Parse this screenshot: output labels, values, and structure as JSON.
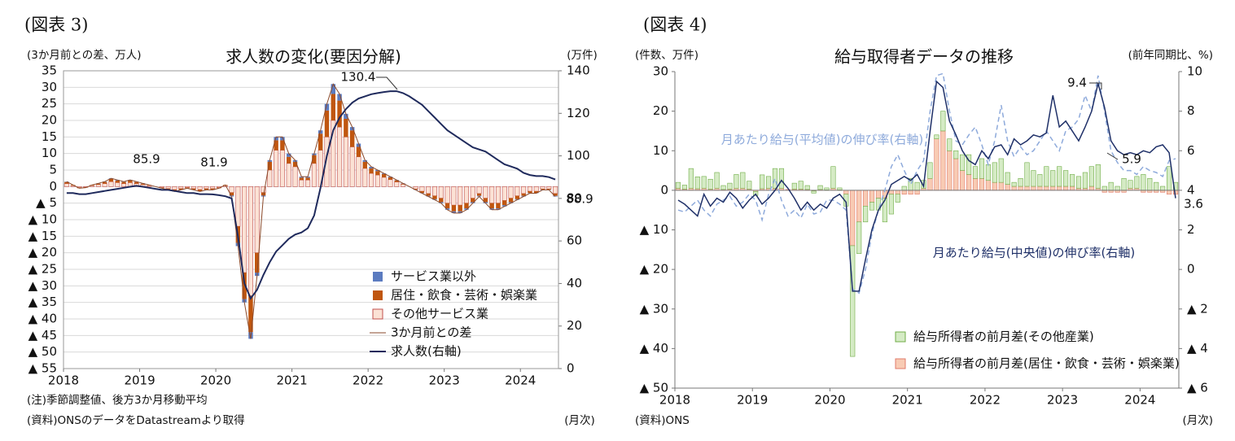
{
  "chart_data": [
    {
      "type": "combo",
      "caption": "(図表 3)",
      "title": "求人数の変化(要因分解)",
      "ylabel": "(3か月前との差、万人)",
      "y2label": "(万件)",
      "x_label": "(月次)",
      "notes": [
        "(注)季節調整値、後方3か月移動平均",
        "(資料)ONSのデータをDatastreamより取得"
      ],
      "annotations": [
        "85.9",
        "81.9",
        "130.4",
        "88.9"
      ],
      "grid": true,
      "frame": true,
      "legend": "lower right",
      "categories": [
        "2018",
        null,
        null,
        null,
        null,
        null,
        null,
        null,
        null,
        null,
        null,
        null,
        "2019",
        null,
        null,
        null,
        null,
        null,
        null,
        null,
        null,
        null,
        null,
        null,
        "2020",
        null,
        null,
        null,
        null,
        null,
        null,
        null,
        null,
        null,
        null,
        null,
        "2021",
        null,
        null,
        null,
        null,
        null,
        null,
        null,
        null,
        null,
        null,
        null,
        "2022",
        null,
        null,
        null,
        null,
        null,
        null,
        null,
        null,
        null,
        null,
        null,
        "2023",
        null,
        null,
        null,
        null,
        null,
        null,
        null,
        null,
        null,
        null,
        null,
        "2024",
        null,
        null,
        null,
        null,
        null
      ],
      "ylim": [
        -55,
        35
      ],
      "yticks": [
        35,
        30,
        25,
        20,
        15,
        10,
        5,
        0,
        {
          "value": -5,
          "label": "▲ 5"
        },
        {
          "value": -10,
          "label": "▲ 10"
        },
        {
          "value": -15,
          "label": "▲ 15"
        },
        {
          "value": -20,
          "label": "▲ 20"
        },
        {
          "value": -25,
          "label": "▲ 25"
        },
        {
          "value": -30,
          "label": "▲ 30"
        },
        {
          "value": -35,
          "label": "▲ 35"
        },
        {
          "value": -40,
          "label": "▲ 40"
        },
        {
          "value": -45,
          "label": "▲ 45"
        },
        {
          "value": -50,
          "label": "▲ 50"
        },
        {
          "value": -55,
          "label": "▲ 55"
        }
      ],
      "y2lim": [
        0,
        140
      ],
      "y2ticks": [
        140,
        120,
        100,
        80,
        60,
        40,
        20,
        0
      ],
      "series": [
        {
          "name": "サービス業以外",
          "kind": "bar",
          "color": "#5b7bc0",
          "values": [
            0.1,
            0,
            0,
            0,
            0,
            0.1,
            0.1,
            0.2,
            0.2,
            0.1,
            0.2,
            0.1,
            0.1,
            0,
            0,
            0,
            -0.1,
            -0.1,
            -0.1,
            0,
            -0.1,
            -0.1,
            -0.1,
            -0.1,
            0,
            0,
            -0.3,
            -1,
            -1,
            -2,
            -1,
            -0.3,
            0.5,
            1,
            1,
            1,
            0.5,
            0.3,
            0.3,
            0.5,
            1,
            2,
            3,
            2,
            1.5,
            1,
            1,
            0.5,
            0.5,
            0.3,
            0.2,
            0.2,
            0.1,
            0.1,
            0,
            -0.1,
            -0.1,
            -0.2,
            -0.2,
            -0.3,
            -0.4,
            -0.5,
            -0.5,
            -0.4,
            -0.3,
            -0.2,
            -0.3,
            -0.4,
            -0.4,
            -0.4,
            -0.3,
            -0.2,
            -0.2,
            -0.1,
            -0.1,
            -0.1,
            -0.1,
            -0.2
          ]
        },
        {
          "name": "居住・飲食・芸術・娯楽業",
          "kind": "bar",
          "color": "#c0560f",
          "values": [
            0.5,
            0.2,
            -0.2,
            -0.1,
            0.2,
            0.3,
            0.5,
            0.8,
            0.6,
            0.5,
            0.6,
            0.5,
            0.3,
            0.2,
            0,
            -0.2,
            -0.3,
            -0.5,
            -0.3,
            -0.2,
            -0.3,
            -0.5,
            -0.3,
            -0.3,
            -0.2,
            0.2,
            -0.9,
            -5,
            -8,
            -11,
            -6,
            -0.9,
            2.5,
            3,
            3,
            2,
            1.5,
            0.7,
            0.7,
            2.5,
            5,
            8,
            8,
            8,
            5.5,
            5,
            3,
            2,
            1.5,
            1.2,
            1,
            0.7,
            0.5,
            0.2,
            0,
            -0.2,
            -0.5,
            -0.7,
            -1,
            -1.2,
            -1.6,
            -1.9,
            -1.9,
            -1.6,
            -1.2,
            -0.7,
            -1.2,
            -1.6,
            -1.6,
            -1.4,
            -1.2,
            -1,
            -0.7,
            -0.5,
            -0.5,
            -0.2,
            -0.2,
            -0.7
          ]
        },
        {
          "name": "その他サービス業",
          "kind": "bar",
          "color": "#fbe2d5",
          "edgecolor": "#c0504d",
          "values": [
            0.9,
            0.3,
            -0.3,
            -0.2,
            0.3,
            0.6,
            0.9,
            1.5,
            1.2,
            0.9,
            1.2,
            0.9,
            0.6,
            0.3,
            0,
            -0.3,
            -0.6,
            -0.9,
            -0.6,
            -0.3,
            -0.6,
            -0.9,
            -0.6,
            -0.6,
            -0.3,
            0.3,
            -1.8,
            -12,
            -26,
            -33,
            -20,
            -1.8,
            5,
            11,
            11,
            7,
            6,
            2,
            2,
            7,
            11,
            15,
            20,
            18,
            15,
            12,
            9,
            5.5,
            4,
            3.5,
            2.8,
            2.1,
            1.4,
            0.7,
            0,
            -0.7,
            -1.4,
            -2.1,
            -2.8,
            -3.5,
            -5,
            -5.6,
            -5.6,
            -5,
            -3.5,
            -2.1,
            -3.5,
            -5,
            -5,
            -4.2,
            -3.5,
            -2.8,
            -2.1,
            -1.4,
            -1.4,
            -0.7,
            -0.7,
            -2.1
          ]
        },
        {
          "name": "3か月前との差",
          "kind": "line",
          "color": "#8b4a2b",
          "width": 1,
          "values": [
            1.5,
            0.5,
            -0.5,
            -0.3,
            0.5,
            1,
            1.5,
            2.5,
            2,
            1.5,
            2,
            1.5,
            1,
            0.5,
            0,
            -0.5,
            -1,
            -1.5,
            -1,
            -0.5,
            -1,
            -1.5,
            -1,
            -1,
            -0.5,
            0.5,
            -3,
            -18,
            -35,
            -46,
            -27,
            -3,
            8,
            15,
            15,
            10,
            8,
            3,
            3,
            10,
            17,
            25,
            31,
            28,
            22,
            18,
            13,
            8,
            6,
            5,
            4,
            3,
            2,
            1,
            0,
            -1,
            -2,
            -3,
            -4,
            -5,
            -7,
            -8,
            -8,
            -7,
            -5,
            -3,
            -5,
            -7,
            -7,
            -6,
            -5,
            -4,
            -3,
            -2,
            -2,
            -1,
            -1,
            -3
          ]
        },
        {
          "name": "求人数(右軸)",
          "kind": "line",
          "axis": "y2",
          "color": "#1f2a5c",
          "width": 2,
          "values": [
            82.5,
            82.5,
            82,
            82,
            82.5,
            83,
            83.5,
            84,
            84.5,
            85,
            85.5,
            85.9,
            85.5,
            85,
            84.5,
            84,
            84,
            83.5,
            83,
            82.5,
            82.5,
            82,
            82,
            81.9,
            81.5,
            81,
            80,
            62,
            40,
            33,
            37,
            44,
            50,
            55,
            58,
            61,
            63,
            64,
            66,
            72,
            85,
            100,
            112,
            118,
            122,
            125,
            127,
            128,
            129,
            129.5,
            130,
            130.4,
            130.4,
            129.5,
            128,
            126,
            124,
            121,
            118,
            115,
            112,
            110,
            108,
            106,
            104,
            103,
            102,
            100,
            98,
            96,
            95,
            94,
            92,
            91,
            90.5,
            90.5,
            90,
            88.9
          ]
        }
      ]
    },
    {
      "type": "combo",
      "caption": "(図表 4)",
      "title": "給与取得者データの推移",
      "ylabel": "(件数、万件)",
      "y2label": "(前年同期比、%)",
      "x_label": "(月次)",
      "notes": [
        "(資料)ONS"
      ],
      "annotations": [
        "9.4",
        "5.9",
        "3.6"
      ],
      "grid": false,
      "frame": false,
      "legend": "lower center",
      "categories": [
        "2018",
        null,
        null,
        null,
        null,
        null,
        null,
        null,
        null,
        null,
        null,
        null,
        "2019",
        null,
        null,
        null,
        null,
        null,
        null,
        null,
        null,
        null,
        null,
        null,
        "2020",
        null,
        null,
        null,
        null,
        null,
        null,
        null,
        null,
        null,
        null,
        null,
        "2021",
        null,
        null,
        null,
        null,
        null,
        null,
        null,
        null,
        null,
        null,
        null,
        "2022",
        null,
        null,
        null,
        null,
        null,
        null,
        null,
        null,
        null,
        null,
        null,
        "2023",
        null,
        null,
        null,
        null,
        null,
        null,
        null,
        null,
        null,
        null,
        null,
        "2024",
        null,
        null,
        null,
        null,
        null
      ],
      "ylim": [
        -50,
        30
      ],
      "yticks": [
        30,
        20,
        10,
        0,
        {
          "value": -10,
          "label": "▲ 10"
        },
        {
          "value": -20,
          "label": "▲ 20"
        },
        {
          "value": -30,
          "label": "▲ 30"
        },
        {
          "value": -40,
          "label": "▲ 40"
        },
        {
          "value": -50,
          "label": "▲ 50"
        }
      ],
      "y2lim": [
        -6,
        10
      ],
      "y2ticks": [
        10,
        8,
        6,
        4,
        2,
        0,
        {
          "value": -2,
          "label": "▲ 2"
        },
        {
          "value": -4,
          "label": "▲ 4"
        },
        {
          "value": -6,
          "label": "▲ 6"
        }
      ],
      "series": [
        {
          "name": "給与所得者の前月差(その他産業)",
          "kind": "bar",
          "color": "#d5ebc5",
          "edgecolor": "#70ad47",
          "values": [
            1.5,
            1,
            5,
            3,
            3,
            2.5,
            4,
            1,
            1.5,
            3.5,
            4,
            2,
            -1,
            3.5,
            3,
            5,
            5,
            0,
            1.5,
            2,
            1,
            -0.5,
            1,
            0.5,
            5.5,
            0.5,
            -3,
            -28,
            -8,
            -4,
            -2,
            -3,
            -6,
            -5,
            -2,
            1,
            3,
            2,
            2,
            4,
            1,
            5,
            3,
            2,
            4,
            5,
            3,
            5,
            4,
            5,
            6,
            3,
            1,
            2,
            6,
            4,
            3,
            5,
            4,
            5,
            4,
            3,
            3,
            4,
            5,
            6,
            1,
            2,
            1,
            3,
            2,
            3,
            4,
            3,
            2,
            1,
            6,
            2
          ]
        },
        {
          "name": "給与所得者の前月差(居住・飲食・芸術・娯楽業)",
          "kind": "bar",
          "color": "#f8cbb4",
          "edgecolor": "#e07b6b",
          "values": [
            0.5,
            0.3,
            0.5,
            0.4,
            0.5,
            0.3,
            0.5,
            0.2,
            0.3,
            0.5,
            0.5,
            0.3,
            -0.3,
            0.4,
            0.5,
            0.5,
            0.5,
            0.2,
            0.3,
            0.3,
            0.2,
            -0.2,
            0.2,
            0.1,
            0.5,
            0.1,
            -1,
            -14,
            -8,
            -4,
            -3,
            -2,
            -2,
            -1,
            -1,
            -1,
            -1,
            -1,
            0.5,
            3,
            13,
            15,
            10,
            8,
            5,
            4,
            3,
            3,
            2.5,
            2,
            2,
            1.5,
            1,
            1,
            1,
            1,
            1,
            1,
            1,
            1,
            1,
            1,
            0.5,
            0.5,
            1,
            0.5,
            -0.5,
            -0.5,
            -0.5,
            -0.5,
            0.5,
            0.5,
            -0.5,
            -0.5,
            -0.5,
            -0.5,
            -1,
            -1
          ]
        },
        {
          "name": "月あたり給与(平均値)の伸び率(右軸)",
          "kind": "line",
          "axis": "y2",
          "linestyle": "dashed",
          "color": "#8eaadb",
          "width": 1.5,
          "values": [
            3,
            2.9,
            3.2,
            3.5,
            3,
            2.7,
            3.3,
            3.5,
            3.7,
            3.2,
            3.4,
            3.8,
            3.5,
            2.5,
            3.8,
            4.6,
            3.5,
            2.7,
            3,
            2.6,
            3.3,
            2.8,
            2.9,
            3.5,
            3.5,
            3.3,
            3,
            -1,
            -1.2,
            0,
            1.8,
            3,
            4,
            5.2,
            5.8,
            5,
            4.3,
            5,
            5.5,
            8,
            9.8,
            9.9,
            8,
            6.5,
            6.3,
            6.8,
            7.2,
            6.3,
            5.3,
            6.5,
            8.3,
            6.5,
            5.7,
            6.2,
            5.8,
            6,
            6.5,
            7,
            6.5,
            6,
            7,
            7.2,
            7.6,
            8.8,
            8,
            9.8,
            8,
            6,
            5.4,
            5,
            5,
            4.8,
            5.2,
            5,
            4.9,
            4.7,
            5.5,
            5.6
          ]
        },
        {
          "name": "月あたり給与(中央値)の伸び率(右軸)",
          "kind": "line",
          "axis": "y2",
          "color": "#1f3068",
          "width": 1.5,
          "values": [
            3.5,
            3.3,
            3,
            2.7,
            3.8,
            3.2,
            3.6,
            3.4,
            3.9,
            3.6,
            3.1,
            3.5,
            3.8,
            3.3,
            3.6,
            4,
            4.5,
            4.1,
            3.6,
            3,
            3.4,
            3,
            3.3,
            3.1,
            3.6,
            3.8,
            3.4,
            -1.1,
            -1.1,
            0.5,
            2,
            3,
            3.5,
            4.3,
            4.5,
            4.7,
            4.5,
            4.8,
            4.2,
            7,
            9.5,
            9.2,
            7.5,
            6.8,
            6,
            5.5,
            5.3,
            6,
            5.6,
            6.2,
            6.3,
            5.8,
            6.6,
            6.3,
            6.5,
            6.8,
            6.7,
            6.9,
            8.8,
            7.2,
            7.5,
            7,
            6.5,
            7.2,
            8,
            9.4,
            8.2,
            6.5,
            6,
            5.8,
            5.9,
            5.8,
            6,
            5.9,
            6.2,
            6.3,
            5.9,
            3.6
          ]
        }
      ]
    }
  ]
}
